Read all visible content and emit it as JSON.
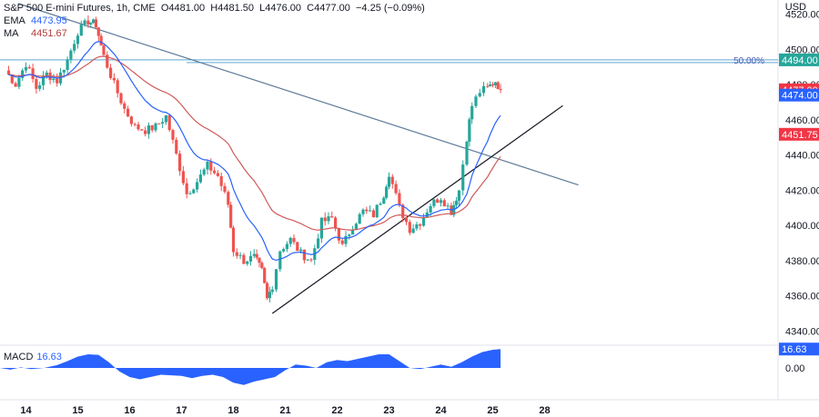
{
  "header": {
    "symbol": "S&P 500 E-mini Futures, 1h, CME",
    "open_label": "O",
    "open": "4481.00",
    "high_label": "H",
    "high": "4481.50",
    "low_label": "L",
    "low": "4476.00",
    "close_label": "C",
    "close": "4477.00",
    "change": "−4.25 (−0.09%)",
    "ema_label": "EMA",
    "ema_value": "4473.95",
    "ma_label": "MA",
    "ma_value": "4451.67",
    "currency": "USD"
  },
  "macd": {
    "label": "MACD",
    "value": "16.63"
  },
  "chart_data": {
    "type": "candlestick",
    "y_range": [
      4333,
      4528
    ],
    "y_ticks": [
      "4520.00",
      "4500.00",
      "4480.00",
      "4460.00",
      "4440.00",
      "4420.00",
      "4400.00",
      "4380.00",
      "4360.00",
      "4340.00"
    ],
    "y_tick_values": [
      4520,
      4500,
      4480,
      4460,
      4440,
      4420,
      4400,
      4380,
      4360,
      4340
    ],
    "x_range": [
      13.5,
      28.5
    ],
    "x_ticks": [
      "14",
      "15",
      "16",
      "17",
      "18",
      "21",
      "22",
      "23",
      "24",
      "25",
      "28"
    ],
    "x_tick_positions": [
      14,
      15,
      16,
      17,
      18,
      19,
      20,
      21,
      22,
      23,
      24
    ],
    "price_series": [
      [
        13.6,
        4488
      ],
      [
        13.8,
        4480
      ],
      [
        14.0,
        4492
      ],
      [
        14.2,
        4478
      ],
      [
        14.4,
        4486
      ],
      [
        14.6,
        4482
      ],
      [
        14.8,
        4494
      ],
      [
        15.0,
        4510
      ],
      [
        15.2,
        4516
      ],
      [
        15.35,
        4514
      ],
      [
        15.5,
        4496
      ],
      [
        15.7,
        4480
      ],
      [
        15.9,
        4466
      ],
      [
        16.1,
        4456
      ],
      [
        16.3,
        4454
      ],
      [
        16.5,
        4456
      ],
      [
        16.7,
        4462
      ],
      [
        16.9,
        4440
      ],
      [
        17.1,
        4418
      ],
      [
        17.3,
        4425
      ],
      [
        17.5,
        4434
      ],
      [
        17.7,
        4428
      ],
      [
        17.9,
        4412
      ],
      [
        18.0,
        4386
      ],
      [
        18.2,
        4380
      ],
      [
        18.4,
        4382
      ],
      [
        18.55,
        4374
      ],
      [
        18.65,
        4358
      ],
      [
        18.75,
        4366
      ],
      [
        18.9,
        4386
      ],
      [
        19.1,
        4392
      ],
      [
        19.3,
        4384
      ],
      [
        19.5,
        4380
      ],
      [
        19.7,
        4402
      ],
      [
        19.9,
        4404
      ],
      [
        20.1,
        4388
      ],
      [
        20.3,
        4400
      ],
      [
        20.5,
        4408
      ],
      [
        20.7,
        4406
      ],
      [
        20.9,
        4418
      ],
      [
        21.0,
        4430
      ],
      [
        21.2,
        4410
      ],
      [
        21.4,
        4398
      ],
      [
        21.6,
        4402
      ],
      [
        21.8,
        4412
      ],
      [
        22.0,
        4416
      ],
      [
        22.2,
        4408
      ],
      [
        22.35,
        4420
      ],
      [
        22.5,
        4450
      ],
      [
        22.6,
        4468
      ],
      [
        22.75,
        4476
      ],
      [
        22.9,
        4478
      ],
      [
        23.05,
        4482
      ],
      [
        23.15,
        4477
      ]
    ],
    "ema_value": 4473.95,
    "ma_value": 4451.67,
    "hlines": [
      {
        "label": "50.00%",
        "value": 4494.0
      }
    ],
    "price_badges": [
      {
        "value": 4494.0,
        "text": "4494.00",
        "color": "#26a69a"
      },
      {
        "value": 4477.0,
        "text": "4477.00",
        "color": "#f23645"
      },
      {
        "value": 4474.0,
        "text": "4474.00",
        "color": "#2962ff"
      },
      {
        "value": 4451.75,
        "text": "4451.75",
        "color": "#f23645"
      }
    ],
    "trendlines": [
      {
        "name": "descending",
        "from": [
          13.85,
          4526
        ],
        "to": [
          24.65,
          4423
        ],
        "color": "#5d7a99"
      },
      {
        "name": "ascending",
        "from": [
          18.75,
          4350
        ],
        "to": [
          24.35,
          4468
        ],
        "color": "#131722"
      }
    ],
    "macd": {
      "values": [
        [
          13.5,
          0
        ],
        [
          13.7,
          -1.5
        ],
        [
          13.9,
          0.5
        ],
        [
          14.1,
          -1
        ],
        [
          14.35,
          0
        ],
        [
          14.6,
          2.5
        ],
        [
          14.8,
          6
        ],
        [
          15.0,
          10
        ],
        [
          15.2,
          12
        ],
        [
          15.4,
          11.5
        ],
        [
          15.6,
          5
        ],
        [
          15.8,
          -3
        ],
        [
          16.0,
          -8
        ],
        [
          16.2,
          -10
        ],
        [
          16.4,
          -8
        ],
        [
          16.6,
          -6
        ],
        [
          16.8,
          -6.5
        ],
        [
          17.0,
          -7
        ],
        [
          17.2,
          -9
        ],
        [
          17.4,
          -7
        ],
        [
          17.6,
          -6
        ],
        [
          17.8,
          -8
        ],
        [
          18.0,
          -13
        ],
        [
          18.2,
          -15
        ],
        [
          18.4,
          -12
        ],
        [
          18.6,
          -10
        ],
        [
          18.8,
          -8
        ],
        [
          19.0,
          -2
        ],
        [
          19.2,
          3
        ],
        [
          19.4,
          2
        ],
        [
          19.6,
          0
        ],
        [
          19.8,
          5
        ],
        [
          20.0,
          7
        ],
        [
          20.2,
          6
        ],
        [
          20.4,
          8
        ],
        [
          20.6,
          10
        ],
        [
          20.8,
          12
        ],
        [
          21.0,
          12
        ],
        [
          21.2,
          6
        ],
        [
          21.4,
          0
        ],
        [
          21.6,
          -1
        ],
        [
          21.8,
          1
        ],
        [
          22.0,
          3
        ],
        [
          22.2,
          1
        ],
        [
          22.4,
          5
        ],
        [
          22.6,
          10
        ],
        [
          22.8,
          14
        ],
        [
          23.0,
          16
        ],
        [
          23.15,
          16.63
        ]
      ],
      "range": [
        -20,
        20
      ],
      "y_ticks": [
        "0.00"
      ],
      "y_tick_values": [
        0
      ],
      "badge": {
        "value": 16.63,
        "text": "16.63",
        "color": "#2962ff"
      }
    }
  }
}
